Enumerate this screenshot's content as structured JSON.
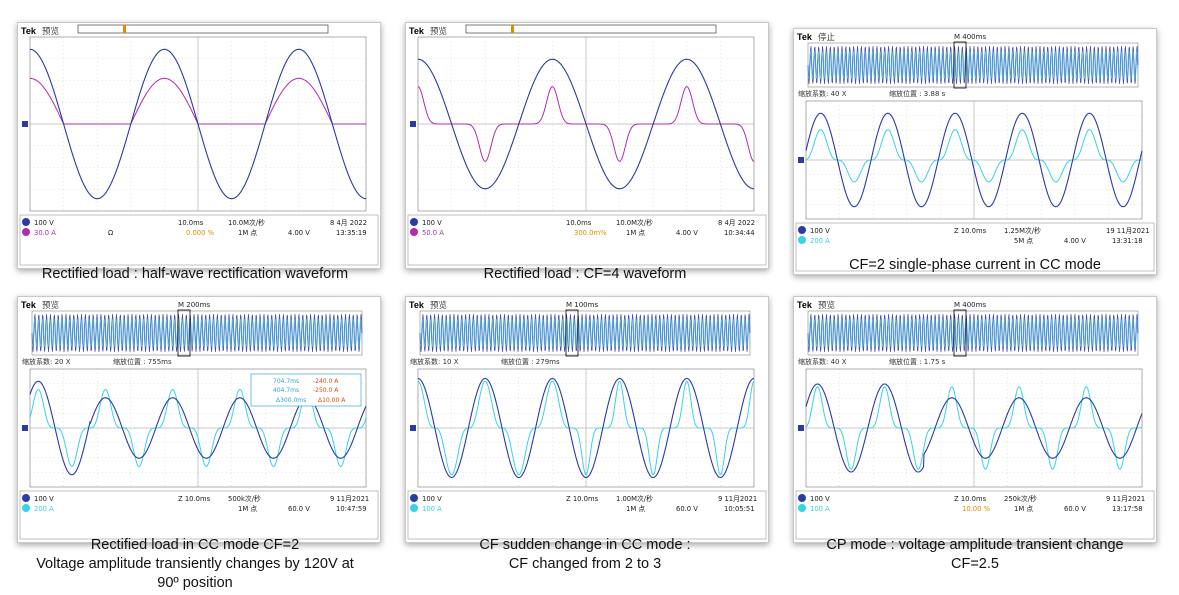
{
  "panels": [
    {
      "brand": "Tek",
      "state": "预览",
      "zoom_top": false,
      "trace_a_color": "#2b3aa8",
      "trace_b_color": "#b12bb0",
      "waveform": "halfwave",
      "status": [
        "100 V",
        "30.0 A",
        "Ω",
        "10.0ms",
        "10.0M次/秒",
        "1M 点",
        "4.00 V",
        "8 4月 2022",
        "13:35:19",
        "0.000 %"
      ],
      "caption": [
        "Rectified load : half-wave rectification waveform"
      ]
    },
    {
      "brand": "Tek",
      "state": "预览",
      "zoom_top": false,
      "trace_a_color": "#2b3aa8",
      "trace_b_color": "#b12bb0",
      "waveform": "cf4",
      "status": [
        "100 V",
        "50.0 A",
        "",
        "10.0ms",
        "10.0M次/秒",
        "1M 点",
        "4.00 V",
        "8 4月 2022",
        "10:34:44",
        "300.0m%"
      ],
      "caption": [
        "Rectified load : CF=4 waveform"
      ]
    },
    {
      "brand": "Tek",
      "state": "停止",
      "zoom_top": true,
      "top_label": "M 400ms",
      "zoom_factor": "缩放系数: 40 X",
      "zoom_pos": "缩放位置 : 3.88 s",
      "trace_a_color": "#2b3aa8",
      "trace_b_color": "#35d3e6",
      "waveform": "cc2",
      "status": [
        "100 V",
        "200 A",
        "",
        "Z 10.0ms",
        "1.25M次/秒",
        "5M 点",
        "4.00 V",
        "19 11月2021",
        "13:31:18",
        ""
      ],
      "caption": [
        "CF=2 single-phase current in CC mode"
      ]
    },
    {
      "brand": "Tek",
      "state": "预览",
      "zoom_top": true,
      "top_label": "M 200ms",
      "zoom_factor": "缩放系数: 20 X",
      "zoom_pos": "缩放位置 : 755ms",
      "trace_a_color": "#2b3aa8",
      "trace_b_color": "#35d3e6",
      "waveform": "cc2t",
      "cursor_box": [
        "704.7ms",
        "-240.0 A",
        "404.7ms",
        "-250.0 A",
        "Δ300.0ms",
        "Δ10.00 A"
      ],
      "status": [
        "100 V",
        "200 A",
        "",
        "Z 10.0ms",
        "500k次/秒",
        "1M 点",
        "60.0 V",
        "9 11月2021",
        "10:47:59",
        ""
      ],
      "caption": [
        "Rectified load in CC mode CF=2",
        "Voltage amplitude transiently changes by 120V at",
        "90º position"
      ]
    },
    {
      "brand": "Tek",
      "state": "预览",
      "zoom_top": true,
      "top_label": "M 100ms",
      "zoom_factor": "缩放系数: 10 X",
      "zoom_pos": "缩放位置 : 279ms",
      "trace_a_color": "#2b3aa8",
      "trace_b_color": "#35d3e6",
      "waveform": "cc23",
      "status": [
        "100 V",
        "100 A",
        "",
        "Z 10.0ms",
        "1.00M次/秒",
        "1M 点",
        "60.0 V",
        "9 11月2021",
        "10:05:51",
        ""
      ],
      "caption": [
        "CF sudden change in CC mode :",
        "CF changed from 2 to 3"
      ]
    },
    {
      "brand": "Tek",
      "state": "预览",
      "zoom_top": true,
      "top_label": "M 400ms",
      "zoom_factor": "缩放系数: 40 X",
      "zoom_pos": "缩放位置 : 1.75 s",
      "trace_a_color": "#2b3aa8",
      "trace_b_color": "#35d3e6",
      "waveform": "cp",
      "status": [
        "100 V",
        "100 A",
        "",
        "Z 10.0ms",
        "250k次/秒",
        "1M 点",
        "60.0 V",
        "9 11月2021",
        "13:17:58",
        "10.00 %"
      ],
      "caption": [
        "CP mode : voltage amplitude transient change",
        "CF=2.5"
      ]
    }
  ]
}
